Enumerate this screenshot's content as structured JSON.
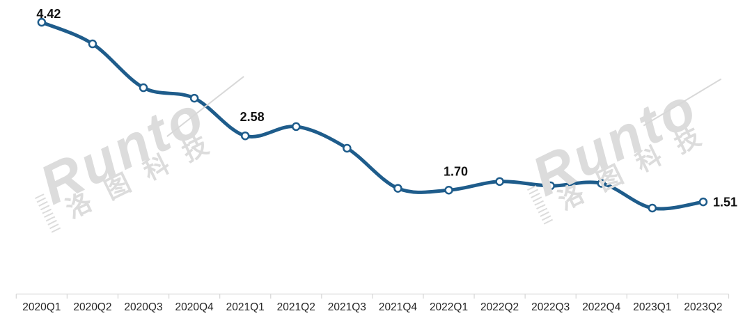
{
  "watermark": {
    "brand": "Runto",
    "brand_cn": "洛图科技",
    "color": "#DCDCDC"
  },
  "colors": {
    "line": "#1E5C8B",
    "marker_fill": "#FFFFFF",
    "data_label_text": "#111111",
    "axis_line": "#D9D9D9",
    "axis_label_text": "#262626",
    "background": "#FFFFFF"
  },
  "chart_data": {
    "type": "line",
    "title": "",
    "xlabel": "",
    "ylabel": "",
    "legend_position": "none",
    "grid": false,
    "smooth": true,
    "categories": [
      "2020Q1",
      "2020Q2",
      "2020Q3",
      "2020Q4",
      "2021Q1",
      "2021Q2",
      "2021Q3",
      "2021Q4",
      "2022Q1",
      "2022Q2",
      "2022Q3",
      "2022Q4",
      "2023Q1",
      "2023Q2"
    ],
    "series": [
      {
        "name": "",
        "color": "#1E5C8B",
        "values": [
          4.42,
          4.07,
          3.36,
          3.19,
          2.58,
          2.73,
          2.38,
          1.73,
          1.7,
          1.84,
          1.77,
          1.81,
          1.41,
          1.51
        ]
      }
    ],
    "data_labels": [
      {
        "category": "2020Q1",
        "text": "4.42",
        "placement": "above"
      },
      {
        "category": "2021Q1",
        "text": "2.58",
        "placement": "above"
      },
      {
        "category": "2022Q1",
        "text": "1.70",
        "placement": "above"
      },
      {
        "category": "2023Q2",
        "text": "1.51",
        "placement": "right"
      }
    ]
  }
}
